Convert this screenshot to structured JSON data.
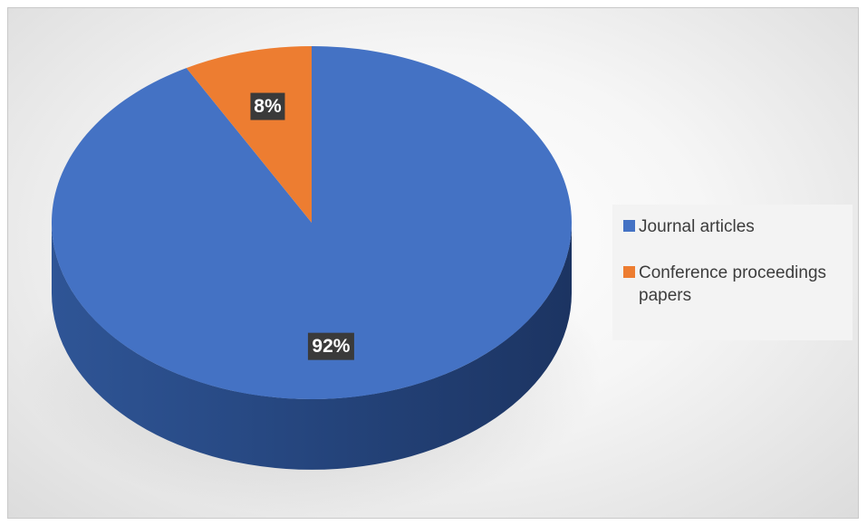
{
  "chart_data": {
    "type": "pie",
    "title": "",
    "three_d": true,
    "series": [
      {
        "values": [
          92,
          8
        ],
        "data_labels": [
          "92%",
          "8%"
        ]
      }
    ],
    "categories": [
      "Journal articles",
      "Conference proceedings papers"
    ],
    "colors": [
      "#4472C4",
      "#ED7D31"
    ],
    "side_colors": [
      "#2C4C8A",
      "#A9581F"
    ],
    "legend": {
      "position": "right",
      "items": [
        {
          "label": "Journal articles",
          "color": "#4472C4"
        },
        {
          "label": "Conference proceedings papers",
          "color": "#ED7D31"
        }
      ]
    }
  }
}
